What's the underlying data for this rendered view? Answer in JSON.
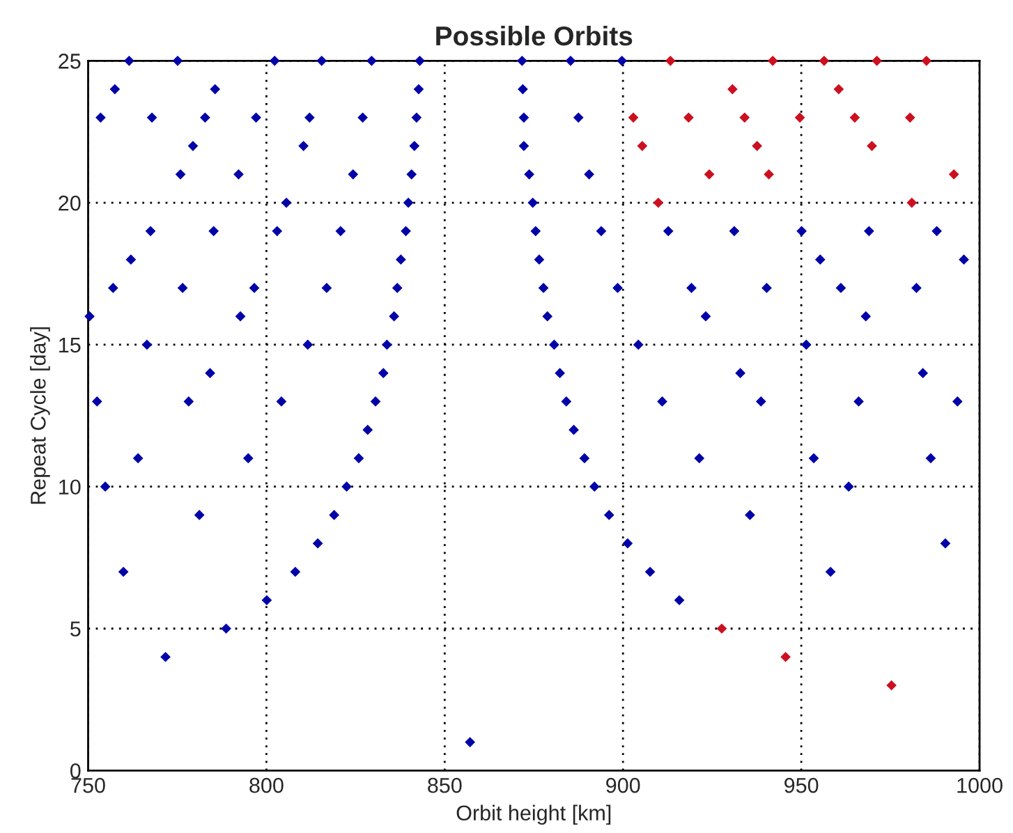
{
  "chart_data": {
    "type": "scatter",
    "title": "Possible Orbits",
    "xlabel": "Orbit height [km]",
    "ylabel": "Repeat Cycle [day]",
    "xlim": [
      750,
      1000
    ],
    "xticks": [
      750,
      800,
      850,
      900,
      950,
      1000
    ],
    "ylim": [
      0,
      25
    ],
    "yticks": [
      0,
      5,
      10,
      15,
      20,
      25
    ],
    "grid": true,
    "marker": "diamond",
    "series": [
      {
        "color": "#0000a8",
        "x": [
          761.5,
          775.1,
          802.3,
          815.5,
          829.5,
          843.0,
          871.7,
          885.3,
          899.7,
          757.5,
          785.6,
          842.7,
          871.9,
          753.5,
          767.9,
          782.8,
          797.1,
          812.1,
          827.0,
          842.1,
          872.2,
          887.5,
          779.4,
          810.4,
          841.5,
          872.2,
          775.9,
          792.2,
          824.3,
          840.7,
          873.7,
          890.5,
          805.6,
          839.8,
          874.7,
          767.5,
          785.2,
          803.0,
          820.8,
          839.1,
          875.5,
          893.9,
          912.7,
          931.2,
          950.1,
          969.0,
          988.0,
          762.0,
          837.7,
          876.5,
          955.3,
          995.6,
          757.0,
          776.5,
          796.6,
          816.9,
          836.7,
          877.7,
          898.5,
          919.2,
          940.3,
          961.1,
          982.3,
          750.4,
          792.7,
          835.8,
          878.8,
          923.2,
          968.1,
          766.5,
          811.6,
          833.8,
          880.7,
          904.3,
          951.4,
          784.2,
          832.8,
          882.3,
          932.9,
          984.1,
          752.5,
          778.2,
          804.2,
          830.6,
          884.1,
          911.0,
          938.7,
          966.1,
          993.8,
          828.4,
          886.2,
          764.0,
          794.9,
          825.9,
          889.2,
          921.4,
          953.5,
          986.3,
          754.8,
          822.5,
          892.0,
          963.3,
          781.2,
          819.0,
          896.1,
          935.6,
          814.4,
          901.3,
          990.4,
          759.9,
          808.1,
          907.6,
          958.2,
          800.1,
          915.8,
          788.7,
          771.7,
          857.1
        ],
        "values": [
          25,
          25,
          25,
          25,
          25,
          25,
          25,
          25,
          25,
          24,
          24,
          24,
          24,
          23,
          23,
          23,
          23,
          23,
          23,
          23,
          23,
          23,
          22,
          22,
          22,
          22,
          21,
          21,
          21,
          21,
          21,
          21,
          20,
          20,
          20,
          19,
          19,
          19,
          19,
          19,
          19,
          19,
          19,
          19,
          19,
          19,
          19,
          18,
          18,
          18,
          18,
          18,
          17,
          17,
          17,
          17,
          17,
          17,
          17,
          17,
          17,
          17,
          17,
          16,
          16,
          16,
          16,
          16,
          16,
          15,
          15,
          15,
          15,
          15,
          15,
          14,
          14,
          14,
          14,
          14,
          13,
          13,
          13,
          13,
          13,
          13,
          13,
          13,
          13,
          12,
          12,
          11,
          11,
          11,
          11,
          11,
          11,
          11,
          10,
          10,
          10,
          10,
          9,
          9,
          9,
          9,
          8,
          8,
          8,
          7,
          7,
          7,
          7,
          6,
          6,
          5,
          4,
          1
        ]
      },
      {
        "color": "#cc1020",
        "x": [
          913.3,
          942.0,
          956.4,
          971.2,
          985.1,
          930.7,
          960.5,
          902.9,
          918.4,
          934.1,
          949.6,
          965.0,
          980.5,
          905.4,
          937.6,
          969.8,
          924.2,
          940.9,
          992.8,
          909.9,
          981.0,
          927.7,
          945.6,
          975.3
        ],
        "values": [
          25,
          25,
          25,
          25,
          25,
          24,
          24,
          23,
          23,
          23,
          23,
          23,
          23,
          22,
          22,
          22,
          21,
          21,
          21,
          20,
          20,
          5,
          4,
          3
        ]
      }
    ]
  }
}
